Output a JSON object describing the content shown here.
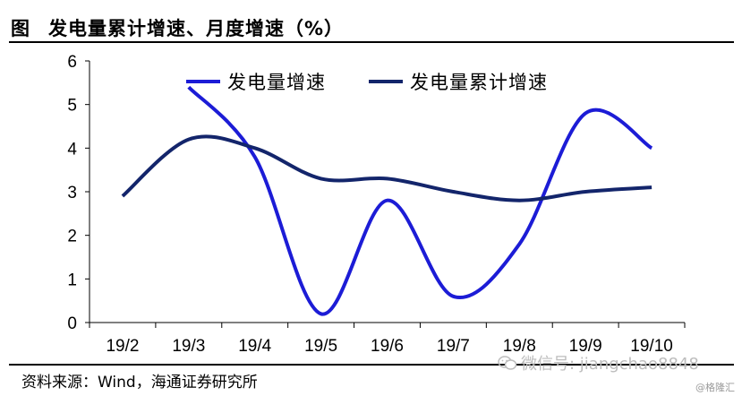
{
  "figure": {
    "label": "图",
    "title": "发电量累计增速、月度增速（%）"
  },
  "source": "资料来源：Wind，海通证券研究所",
  "watermark": {
    "text": "微信号: jiangchao8848",
    "corner": "@格隆汇"
  },
  "chart_data": {
    "type": "line",
    "categories": [
      "19/2",
      "19/3",
      "19/4",
      "19/5",
      "19/6",
      "19/7",
      "19/8",
      "19/9",
      "19/10"
    ],
    "series": [
      {
        "name": "发电量增速",
        "color": "#1c1cd6",
        "values": [
          null,
          5.4,
          3.8,
          0.2,
          2.8,
          0.6,
          1.8,
          4.8,
          4.0
        ]
      },
      {
        "name": "发电量累计增速",
        "color": "#13256b",
        "values": [
          2.9,
          4.2,
          4.0,
          3.3,
          3.3,
          3.0,
          2.8,
          3.0,
          3.1
        ]
      }
    ],
    "ylim": [
      0,
      6
    ],
    "yticks": [
      0,
      1,
      2,
      3,
      4,
      5,
      6
    ],
    "grid": false,
    "smooth": true,
    "legend_position": "top"
  }
}
